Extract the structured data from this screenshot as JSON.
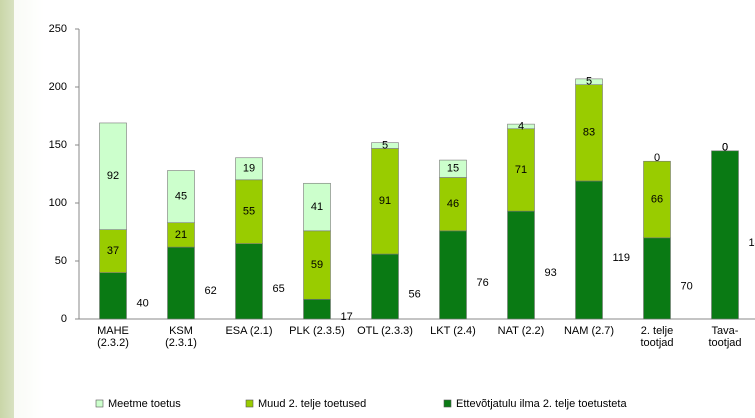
{
  "chart_data": {
    "type": "stacked_bar",
    "categories": [
      [
        "MAHE",
        "(2.3.2)"
      ],
      [
        "KSM",
        "(2.3.1)"
      ],
      [
        "ESA (2.1)"
      ],
      [
        "PLK (2.3.5)"
      ],
      [
        "OTL (2.3.3)"
      ],
      [
        "LKT (2.4)"
      ],
      [
        "NAT (2.2)"
      ],
      [
        "NAM (2.7)"
      ],
      [
        "2. telje",
        "tootjad"
      ],
      [
        "Tava-",
        "tootjad"
      ]
    ],
    "series": [
      {
        "name": "Ettevõtjatulu ilma 2. telje toetusteta",
        "color": "#0a7a14",
        "values": [
          40,
          62,
          65,
          17,
          56,
          76,
          93,
          119,
          70,
          145
        ]
      },
      {
        "name": "Muud 2. telje toetused",
        "color": "#99cc00",
        "values": [
          37,
          21,
          55,
          59,
          91,
          46,
          71,
          83,
          66,
          0
        ]
      },
      {
        "name": "Meetme toetus",
        "color": "#ccffcc",
        "values": [
          92,
          45,
          19,
          41,
          5,
          15,
          4,
          5,
          0,
          0
        ]
      }
    ],
    "ylim": [
      0,
      250
    ],
    "yticks": [
      0,
      50,
      100,
      150,
      200,
      250
    ],
    "grid": false
  }
}
